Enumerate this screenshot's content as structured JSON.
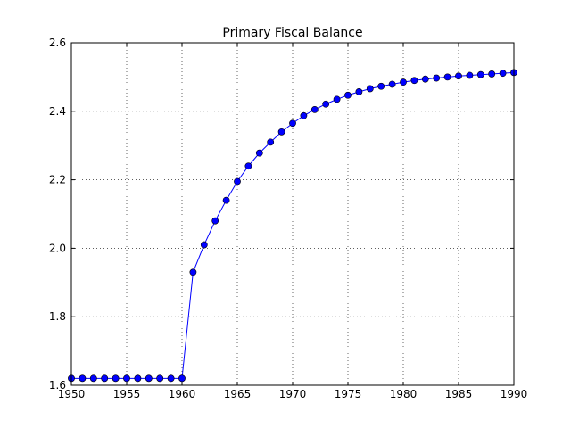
{
  "chart_data": {
    "type": "line",
    "title": "Primary Fiscal Balance",
    "xlabel": "",
    "ylabel": "",
    "xlim": [
      1950,
      1990
    ],
    "ylim": [
      1.6,
      2.6
    ],
    "xticks": [
      "1950",
      "1955",
      "1960",
      "1965",
      "1970",
      "1975",
      "1980",
      "1985",
      "1990"
    ],
    "yticks": [
      "1.6",
      "1.8",
      "2.0",
      "2.2",
      "2.4",
      "2.6"
    ],
    "grid": true,
    "line_color": "#0000ff",
    "series": [
      {
        "x": [
          1950,
          1951,
          1952,
          1953,
          1954,
          1955,
          1956,
          1957,
          1958,
          1959,
          1960,
          1961,
          1962,
          1963,
          1964,
          1965,
          1966,
          1967,
          1968,
          1969,
          1970,
          1971,
          1972,
          1973,
          1974,
          1975,
          1976,
          1977,
          1978,
          1979,
          1980,
          1981,
          1982,
          1983,
          1984,
          1985,
          1986,
          1987,
          1988,
          1989,
          1990
        ],
        "values": [
          1.62,
          1.62,
          1.62,
          1.62,
          1.62,
          1.62,
          1.62,
          1.62,
          1.62,
          1.62,
          1.62,
          1.93,
          2.01,
          2.08,
          2.14,
          2.195,
          2.24,
          2.278,
          2.31,
          2.34,
          2.365,
          2.387,
          2.405,
          2.421,
          2.435,
          2.447,
          2.457,
          2.466,
          2.473,
          2.479,
          2.485,
          2.49,
          2.494,
          2.497,
          2.5,
          2.503,
          2.505,
          2.507,
          2.509,
          2.511,
          2.513
        ]
      }
    ]
  }
}
